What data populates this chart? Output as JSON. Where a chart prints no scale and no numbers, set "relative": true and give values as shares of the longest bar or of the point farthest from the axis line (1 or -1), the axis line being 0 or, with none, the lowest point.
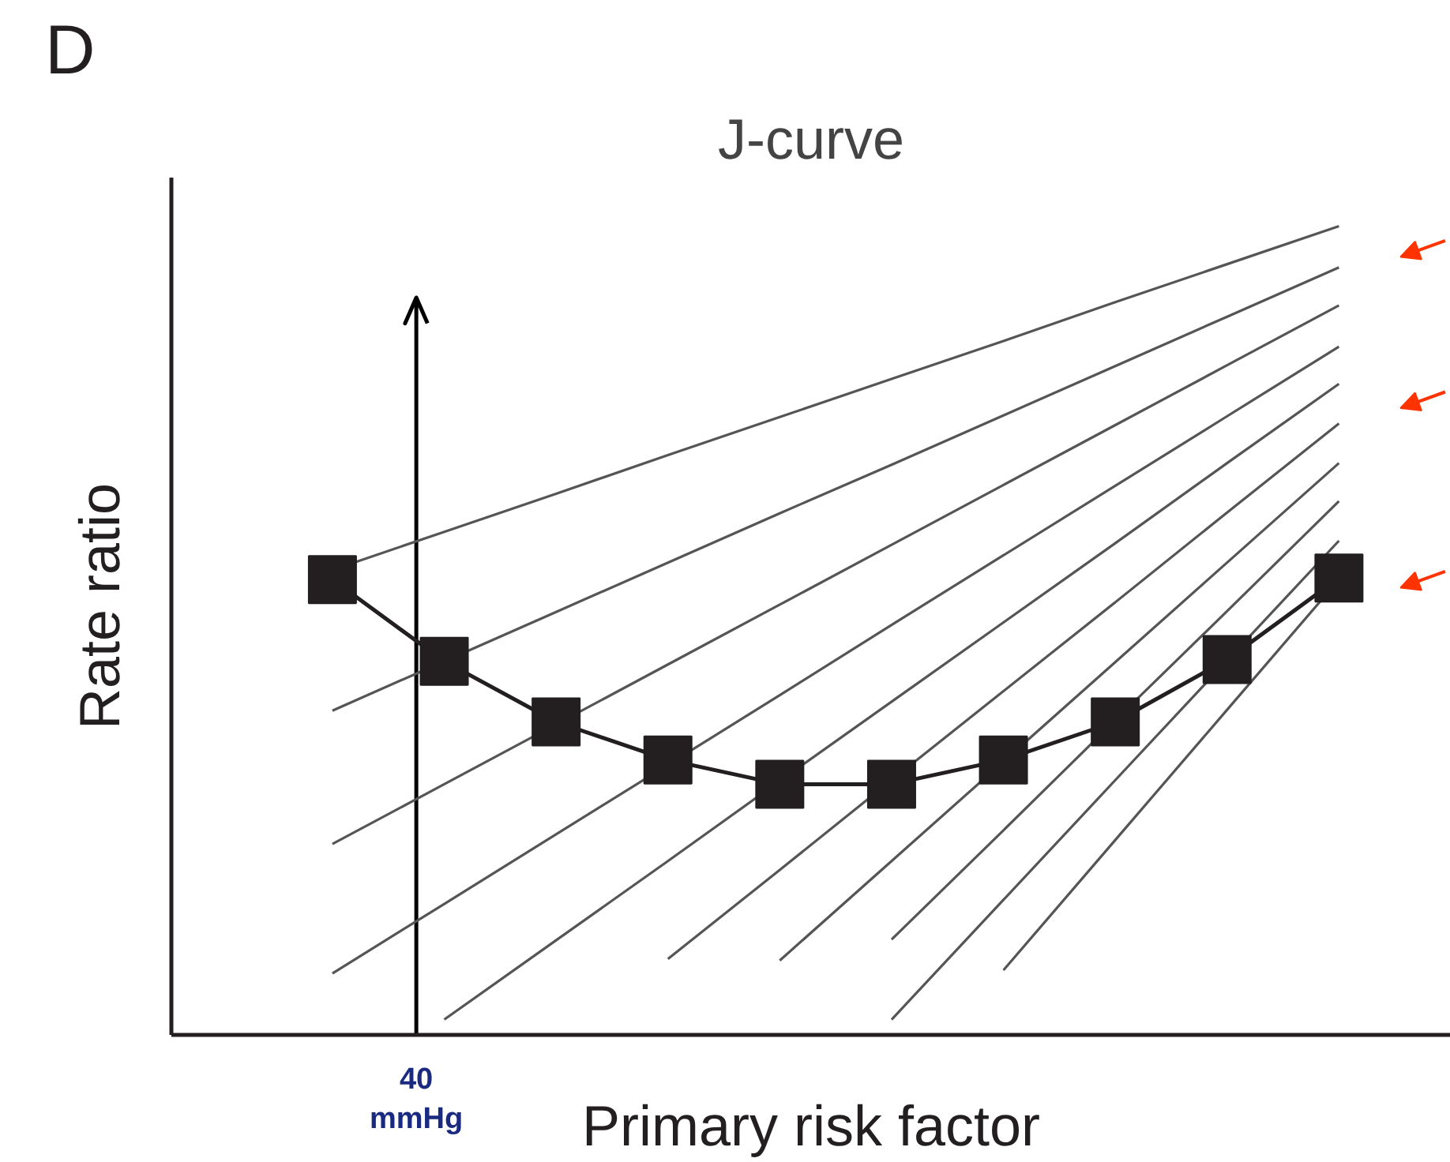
{
  "chart_data": {
    "type": "line",
    "title": "J-curve",
    "xlabel": "Primary risk factor",
    "ylabel": "Rate ratio",
    "relative": true,
    "grid": false,
    "categories": [
      null,
      null,
      null,
      null,
      null,
      null,
      null,
      null,
      null,
      null
    ],
    "series": [
      {
        "color": "#231f20",
        "marker": "square",
        "values": [
          0.563,
          0.462,
          0.387,
          0.34,
          0.31,
          0.31,
          0.34,
          0.387,
          0.464,
          0.565
        ]
      },
      {
        "color": "#555555",
        "marker": "none",
        "values": [
          0.575,
          0.622,
          0.669,
          0.717,
          0.764,
          0.811,
          0.858,
          0.906,
          0.953,
          1.0
        ]
      },
      {
        "color": "#555555",
        "marker": "none",
        "values": [
          0.401,
          0.462,
          0.523,
          0.584,
          0.645,
          0.705,
          0.766,
          0.827,
          0.888,
          0.949
        ]
      },
      {
        "color": "#555555",
        "marker": "none",
        "values": [
          0.236,
          0.31,
          0.384,
          0.458,
          0.532,
          0.606,
          0.68,
          0.754,
          0.828,
          0.902
        ]
      },
      {
        "color": "#555555",
        "marker": "none",
        "values": [
          0.076,
          0.162,
          0.248,
          0.334,
          0.42,
          0.507,
          0.593,
          0.679,
          0.765,
          0.851
        ]
      },
      {
        "color": "#555555",
        "marker": "none",
        "values": [
          null,
          0.019,
          0.117,
          0.215,
          0.314,
          0.412,
          0.51,
          0.608,
          0.707,
          0.805
        ]
      },
      {
        "color": "#555555",
        "marker": "none",
        "values": [
          null,
          null,
          null,
          0.094,
          0.204,
          0.315,
          0.425,
          0.535,
          0.646,
          0.756
        ]
      },
      {
        "color": "#555555",
        "marker": "none",
        "values": [
          null,
          null,
          null,
          null,
          0.092,
          0.215,
          0.338,
          0.461,
          0.584,
          0.707
        ]
      },
      {
        "color": "#555555",
        "marker": "none",
        "values": [
          null,
          null,
          null,
          null,
          null,
          0.118,
          0.253,
          0.389,
          0.524,
          0.66
        ]
      },
      {
        "color": "#555555",
        "marker": "none",
        "values": [
          null,
          null,
          null,
          null,
          null,
          0.019,
          0.167,
          0.315,
          0.463,
          0.611
        ]
      },
      {
        "color": "#555555",
        "marker": "none",
        "values": [
          null,
          null,
          null,
          null,
          null,
          null,
          0.08,
          0.241,
          0.402,
          0.563
        ]
      }
    ],
    "annotations": [
      "D",
      "40 mmHg"
    ]
  }
}
